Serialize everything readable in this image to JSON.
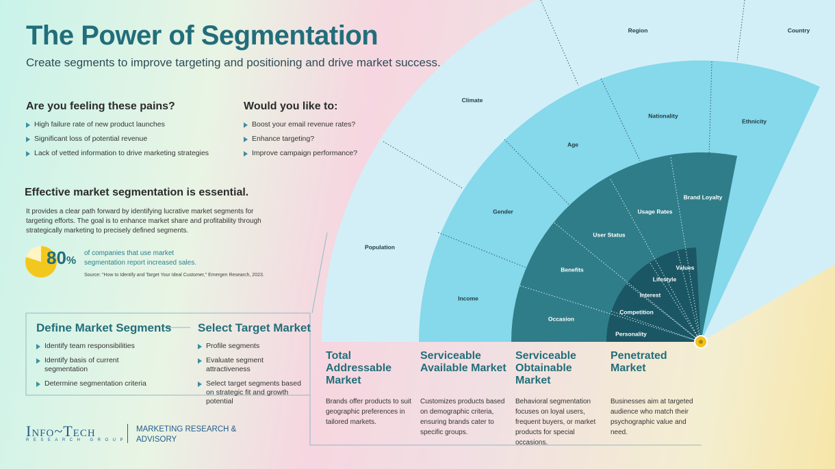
{
  "header": {
    "title": "The Power of Segmentation",
    "subtitle": "Create segments to improve targeting and positioning and drive market success."
  },
  "pains": {
    "heading": "Are you feeling these pains?",
    "items": [
      "High failure rate of new product launches",
      "Significant loss of potential revenue",
      "Lack of vetted information to drive marketing strategies"
    ]
  },
  "wishes": {
    "heading": "Would you like to:",
    "items": [
      "Boost your email revenue rates?",
      "Enhance targeting?",
      "Improve campaign performance?"
    ]
  },
  "essential": {
    "heading": "Effective market segmentation is essential.",
    "body": "It provides a clear path forward by identifying lucrative market segments for targeting efforts. The goal is to enhance market share and profitability through strategically marketing to precisely defined segments.",
    "stat": {
      "percent": 80,
      "percent_sign": "%",
      "text": "of companies that use market segmentation report increased sales.",
      "source": "Source: \"How to Identify and Target Your Ideal Customer,\" Emergen Research, 2023."
    }
  },
  "define": {
    "heading": "Define Market Segments",
    "items": [
      "Identify team responsibilities",
      "Identify basis of current segmentation",
      "Determine segmentation criteria"
    ]
  },
  "select": {
    "heading": "Select Target Market",
    "items": [
      "Profile segments",
      "Evaluate segment attractiveness",
      "Select target segments based on strategic fit and growth potential"
    ]
  },
  "logo": {
    "name": "Info~Tech",
    "tagline": "RESEARCH GROUP",
    "division": "MARKETING RESEARCH & ADVISORY"
  },
  "fan": {
    "layers": [
      {
        "labels": [
          "Country",
          "Region",
          "Climate",
          "Population"
        ]
      },
      {
        "labels": [
          "Ethnicity",
          "Nationality",
          "Age",
          "Gender",
          "Income"
        ]
      },
      {
        "labels": [
          "Brand Loyalty",
          "Usage Rates",
          "User Status",
          "Benefits",
          "Occasion"
        ]
      },
      {
        "labels": [
          "Values",
          "Lifestyle",
          "Interest",
          "Competition",
          "Personality"
        ]
      }
    ]
  },
  "markets": [
    {
      "title": "Total Addressable Market",
      "description": "Brands offer products to suit geographic preferences in tailored markets."
    },
    {
      "title": "Serviceable Available Market",
      "description": "Customizes products based on demographic criteria, ensuring brands cater to specific groups."
    },
    {
      "title": "Serviceable Obtainable Market",
      "description": "Behavioral segmentation focuses on loyal users, frequent buyers, or market products for special occasions."
    },
    {
      "title": "Penetrated Market",
      "description": "Businesses aim at targeted audience who match their psychographic value and need."
    }
  ]
}
